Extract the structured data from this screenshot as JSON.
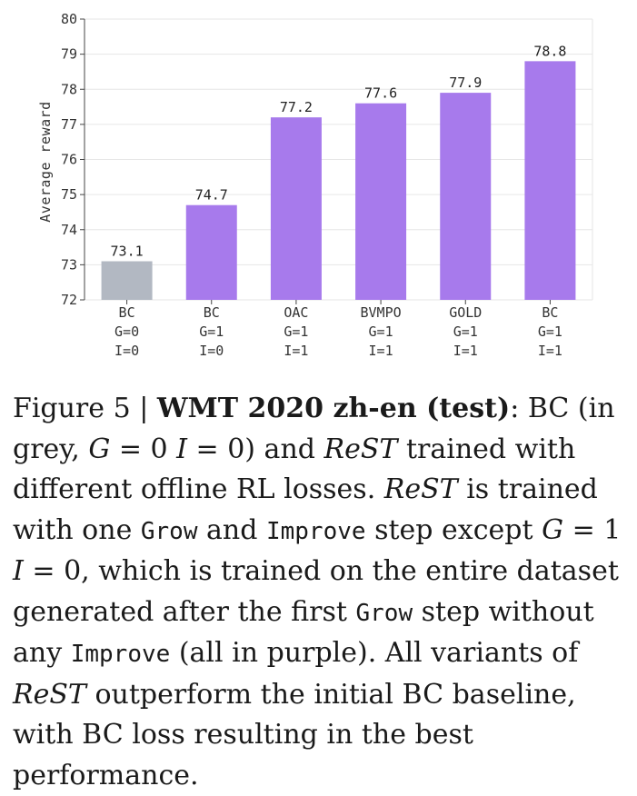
{
  "chart_data": {
    "type": "bar",
    "ylabel": "Average reward",
    "ylim": [
      72,
      80
    ],
    "yticks": [
      "72",
      "73",
      "74",
      "75",
      "76",
      "77",
      "78",
      "79",
      "80"
    ],
    "grid": "horizontal",
    "categories": [
      [
        "BC",
        "G=0",
        "I=0"
      ],
      [
        "BC",
        "G=1",
        "I=0"
      ],
      [
        "OAC",
        "G=1",
        "I=1"
      ],
      [
        "BVMPO",
        "G=1",
        "I=1"
      ],
      [
        "GOLD",
        "G=1",
        "I=1"
      ],
      [
        "BC",
        "G=1",
        "I=1"
      ]
    ],
    "values": [
      73.1,
      74.7,
      77.2,
      77.6,
      77.9,
      78.8
    ],
    "value_labels": [
      "73.1",
      "74.7",
      "77.2",
      "77.6",
      "77.9",
      "78.8"
    ],
    "bar_colors": [
      "#b2b8c2",
      "#a77aec",
      "#a77aec",
      "#a77aec",
      "#a77aec",
      "#a77aec"
    ]
  },
  "caption": {
    "figure_label": "Figure 5 | ",
    "bold_title": "WMT 2020 zh-en (test)",
    "t1": ": BC (in grey, ",
    "g1": "G",
    "t2": " = 0 ",
    "i1": "I",
    "t3": " = 0) and ",
    "rest1": "ReST",
    "t4": " trained with different offline RL losses. ",
    "rest2": "ReST",
    "t5": " is trained with one ",
    "grow1": "Grow",
    "t6": " and ",
    "improve1": "Improve",
    "t7": " step except ",
    "g2": "G",
    "t8": " = 1 ",
    "i2": "I",
    "t9": " = 0, which is trained on the entire dataset generated after the first ",
    "grow2": "Grow",
    "t10": " step without any ",
    "improve2": "Improve",
    "t11": " (all in purple). All variants of ",
    "rest3": "ReST",
    "t12": " outperform the initial BC baseline, with BC loss resulting in the best performance."
  }
}
